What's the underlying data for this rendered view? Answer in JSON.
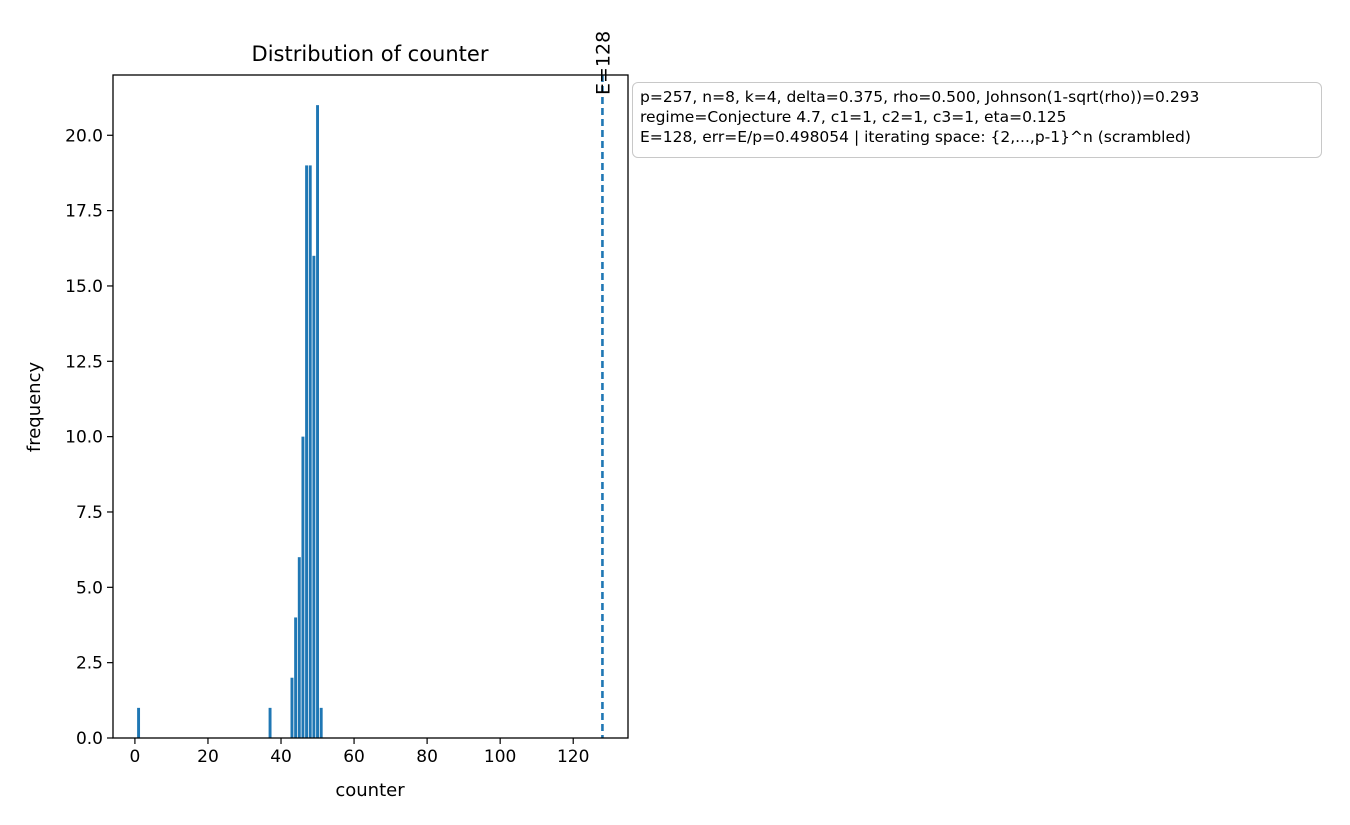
{
  "chart_data": {
    "type": "bar",
    "title": "Distribution of counter",
    "xlabel": "counter",
    "ylabel": "frequency",
    "xlim": [
      -6,
      135
    ],
    "ylim": [
      0,
      22
    ],
    "xticks": [
      0,
      20,
      40,
      60,
      80,
      100,
      120
    ],
    "yticks": [
      0.0,
      2.5,
      5.0,
      7.5,
      10.0,
      12.5,
      15.0,
      17.5,
      20.0
    ],
    "x": [
      1,
      37,
      43,
      44,
      45,
      46,
      47,
      48,
      49,
      50,
      51
    ],
    "values": [
      1,
      1,
      2,
      4,
      6,
      10,
      19,
      19,
      16,
      21,
      1
    ],
    "bar_color": "#1f77b4",
    "reference_line": {
      "x": 128,
      "label": "E=128",
      "style": "dashed",
      "color": "#1f77b4"
    },
    "grid": false
  },
  "info_box": {
    "lines": [
      "p=257, n=8, k=4, delta=0.375, rho=0.500, Johnson(1-sqrt(rho))=0.293",
      "regime=Conjecture 4.7, c1=1, c2=1, c3=1, eta=0.125",
      "E=128, err=E/p=0.498054 | iterating space: {2,...,p-1}^n (scrambled)"
    ]
  }
}
